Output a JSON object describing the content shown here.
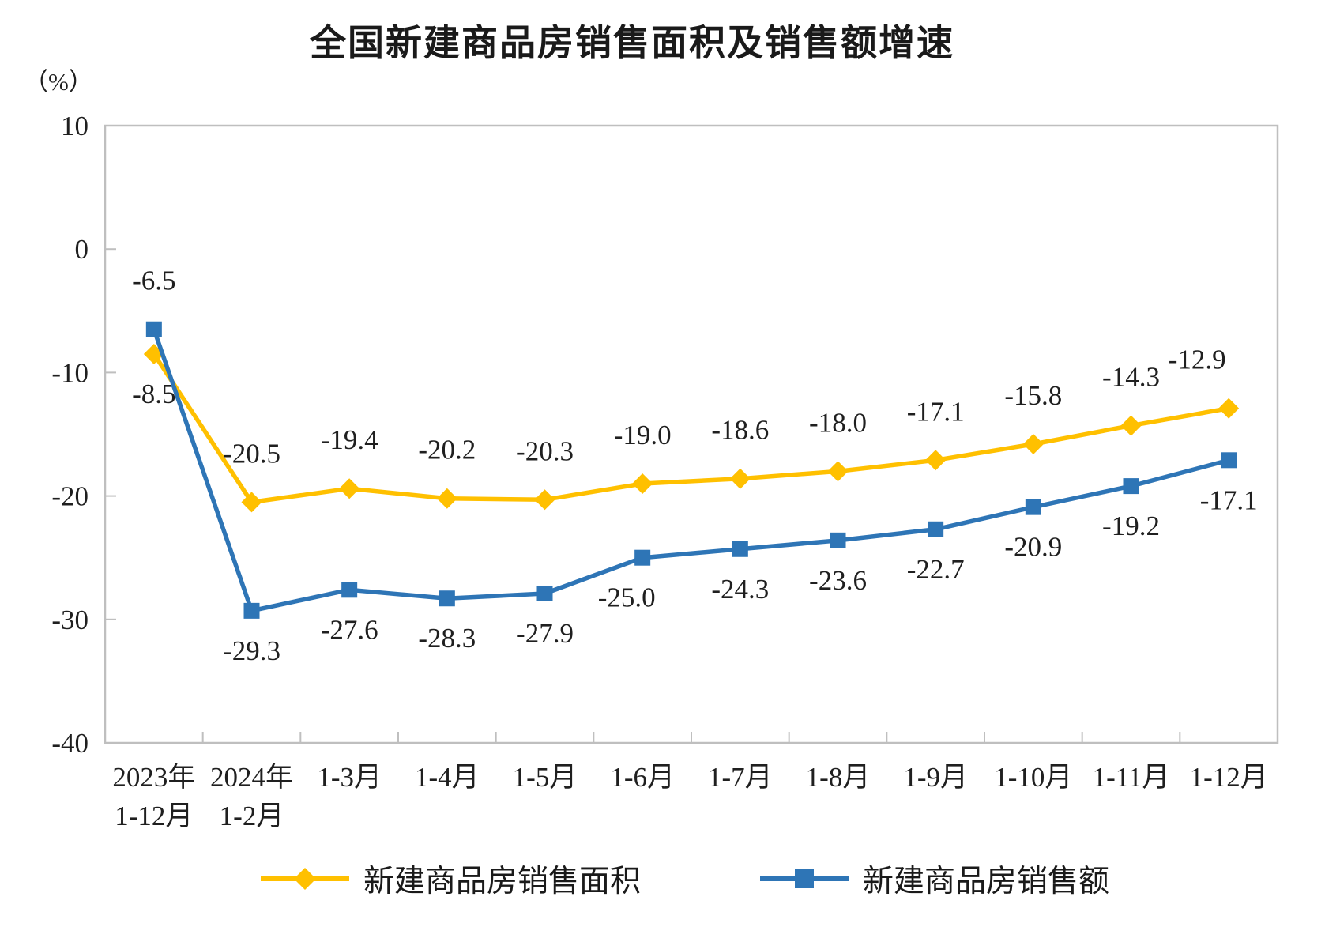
{
  "title": "全国新建商品房销售面积及销售额增速",
  "chart_data": {
    "type": "line",
    "title": "全国新建商品房销售面积及销售额增速",
    "y_axis": {
      "unit_label": "（%）",
      "max": 10,
      "min": -40,
      "tick_step": 10,
      "ticks": [
        10,
        0,
        -10,
        -20,
        -30,
        -40
      ]
    },
    "categories": [
      "2023年\n1-12月",
      "2024年\n1-2月",
      "1-3月",
      "1-4月",
      "1-5月",
      "1-6月",
      "1-7月",
      "1-8月",
      "1-9月",
      "1-10月",
      "1-11月",
      "1-12月"
    ],
    "series": [
      {
        "name": "新建商品房销售面积",
        "color": "#FFC000",
        "marker": "diamond",
        "label_position": "above",
        "values": [
          -8.5,
          -20.5,
          -19.4,
          -20.2,
          -20.3,
          -19.0,
          -18.6,
          -18.0,
          -17.1,
          -15.8,
          -14.3,
          -12.9
        ],
        "label_overrides": {
          "0": {
            "position": "below"
          },
          "11": {
            "dx": -40
          }
        }
      },
      {
        "name": "新建商品房销售额",
        "color": "#2E75B6",
        "marker": "square",
        "label_position": "below",
        "values": [
          -6.5,
          -29.3,
          -27.6,
          -28.3,
          -27.9,
          -25.0,
          -24.3,
          -23.6,
          -22.7,
          -20.9,
          -19.2,
          -17.1
        ],
        "label_overrides": {
          "0": {
            "position": "above"
          },
          "5": {
            "dx": -20
          }
        }
      }
    ],
    "legend_position": "bottom",
    "grid": false,
    "axis_color": "#BFBFBF",
    "text_color": "#1f1f1f"
  }
}
